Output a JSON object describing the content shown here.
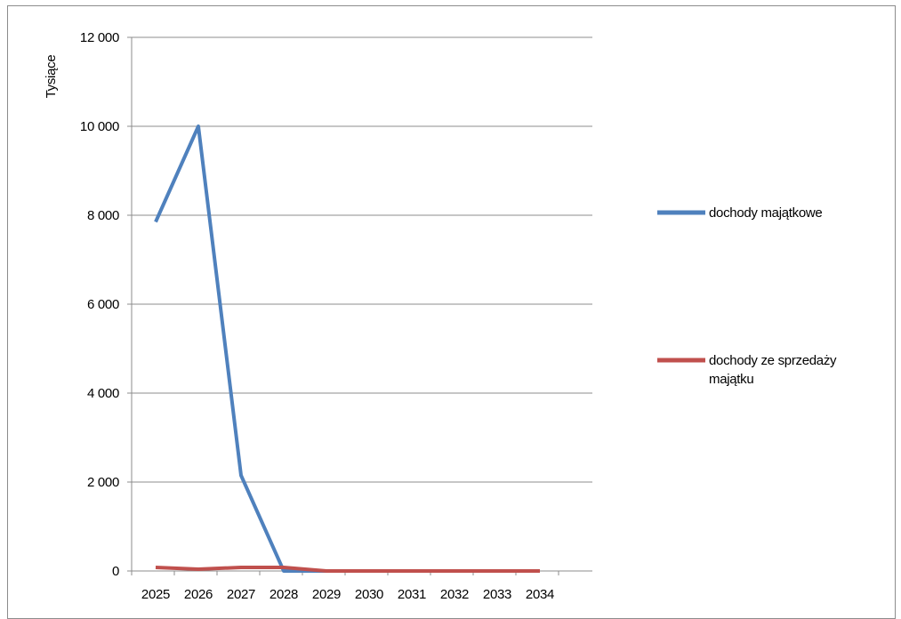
{
  "chart_data": {
    "type": "line",
    "title": "",
    "xlabel": "",
    "ylabel": "Tysiące",
    "categories": [
      "2025",
      "2026",
      "2027",
      "2028",
      "2029",
      "2030",
      "2031",
      "2032",
      "2033",
      "2034"
    ],
    "ylim": [
      0,
      12000
    ],
    "yticks": [
      0,
      2000,
      4000,
      6000,
      8000,
      10000,
      12000
    ],
    "ytick_labels": [
      "0",
      "2 000",
      "4 000",
      "6 000",
      "8 000",
      "10 000",
      "12 000"
    ],
    "grid": "horizontal",
    "legend_position": "right",
    "series": [
      {
        "name": "dochody majątkowe",
        "legend_lines": [
          "dochody majątkowe"
        ],
        "color": "#4f81bd",
        "values": [
          7850,
          10000,
          2150,
          0,
          0,
          0,
          0,
          0,
          0,
          0
        ]
      },
      {
        "name": "dochody ze sprzedaży majątku",
        "legend_lines": [
          "dochody ze sprzedaży",
          "majątku"
        ],
        "color": "#c0504d",
        "values": [
          80,
          40,
          80,
          80,
          0,
          0,
          0,
          0,
          0,
          0
        ]
      }
    ]
  }
}
